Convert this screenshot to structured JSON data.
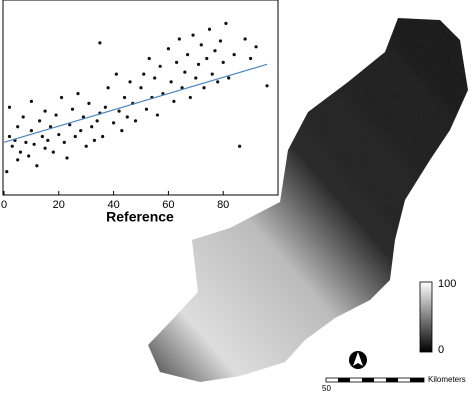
{
  "chart_data": {
    "type": "scatter",
    "xlabel": "Reference",
    "xlim": [
      0,
      100
    ],
    "ylim": [
      0,
      100
    ],
    "xticks": [
      0,
      20,
      40,
      60,
      80
    ],
    "series": [
      {
        "color": "#111111",
        "x": [
          1,
          2,
          2,
          3,
          4,
          5,
          5,
          6,
          7,
          8,
          9,
          10,
          10,
          11,
          12,
          13,
          14,
          15,
          15,
          16,
          17,
          18,
          19,
          20,
          21,
          22,
          23,
          24,
          25,
          26,
          27,
          28,
          29,
          30,
          31,
          32,
          33,
          34,
          35,
          35,
          36,
          37,
          38,
          40,
          41,
          42,
          43,
          44,
          45,
          46,
          47,
          48,
          50,
          51,
          52,
          53,
          54,
          55,
          56,
          57,
          58,
          60,
          61,
          62,
          63,
          64,
          65,
          66,
          67,
          68,
          69,
          70,
          71,
          72,
          73,
          74,
          75,
          76,
          77,
          78,
          79,
          80,
          81,
          82,
          84,
          86,
          88,
          90,
          92,
          96
        ],
        "values": [
          12,
          30,
          45,
          25,
          28,
          18,
          35,
          22,
          40,
          27,
          20,
          33,
          48,
          26,
          15,
          38,
          30,
          24,
          43,
          28,
          35,
          22,
          41,
          31,
          50,
          27,
          19,
          36,
          44,
          30,
          52,
          33,
          40,
          25,
          47,
          35,
          28,
          38,
          78,
          42,
          30,
          45,
          55,
          37,
          62,
          43,
          33,
          50,
          40,
          58,
          47,
          38,
          55,
          62,
          44,
          70,
          50,
          60,
          41,
          66,
          52,
          75,
          58,
          48,
          68,
          80,
          55,
          63,
          72,
          50,
          82,
          60,
          67,
          77,
          55,
          70,
          85,
          62,
          74,
          58,
          79,
          68,
          88,
          60,
          72,
          25,
          80,
          70,
          76,
          56
        ]
      }
    ],
    "trend": {
      "color": "#4a86c0",
      "x": [
        0,
        96
      ],
      "values": [
        27,
        67
      ]
    },
    "colorbar": {
      "max": 100,
      "min": 0
    },
    "scale_bar": {
      "value": 50,
      "label": "Kilometers"
    }
  }
}
